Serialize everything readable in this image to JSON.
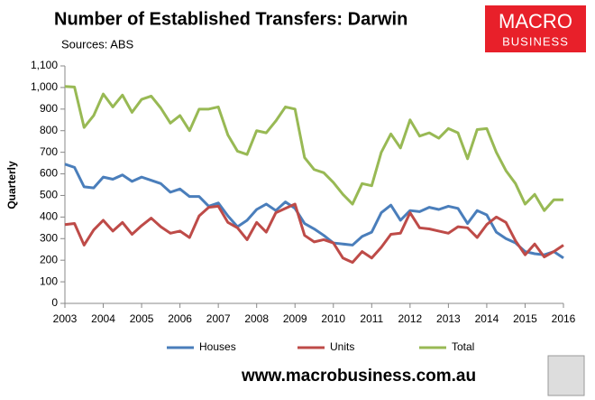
{
  "chart_data": {
    "type": "line",
    "title": "Number of Established Transfers: Darwin",
    "source": "Sources: ABS",
    "logo": [
      "MACRO",
      "BUSINESS"
    ],
    "website": "www.macrobusiness.com.au",
    "y_label": "Quarterly",
    "x": [
      2003,
      2003.25,
      2003.5,
      2003.75,
      2004,
      2004.25,
      2004.5,
      2004.75,
      2005,
      2005.25,
      2005.5,
      2005.75,
      2006,
      2006.25,
      2006.5,
      2006.75,
      2007,
      2007.25,
      2007.5,
      2007.75,
      2008,
      2008.25,
      2008.5,
      2008.75,
      2009,
      2009.25,
      2009.5,
      2009.75,
      2010,
      2010.25,
      2010.5,
      2010.75,
      2011,
      2011.25,
      2011.5,
      2011.75,
      2012,
      2012.25,
      2012.5,
      2012.75,
      2013,
      2013.25,
      2013.5,
      2013.75,
      2014,
      2014.25,
      2014.5,
      2014.75,
      2015,
      2015.25,
      2015.5,
      2015.75,
      2016
    ],
    "series": [
      {
        "name": "Houses",
        "color": "#4a7ebb",
        "values": [
          645,
          630,
          540,
          535,
          585,
          575,
          595,
          565,
          585,
          570,
          555,
          515,
          530,
          495,
          495,
          450,
          465,
          405,
          355,
          385,
          435,
          460,
          430,
          470,
          440,
          370,
          345,
          315,
          280,
          275,
          270,
          310,
          330,
          420,
          455,
          385,
          430,
          425,
          445,
          435,
          450,
          440,
          370,
          430,
          410,
          330,
          300,
          280,
          240,
          230,
          225,
          240,
          210
        ]
      },
      {
        "name": "Units",
        "color": "#be4b48",
        "values": [
          365,
          370,
          270,
          340,
          385,
          335,
          375,
          320,
          360,
          395,
          355,
          325,
          335,
          305,
          405,
          445,
          450,
          375,
          350,
          295,
          375,
          330,
          420,
          440,
          460,
          315,
          285,
          295,
          280,
          210,
          190,
          240,
          210,
          260,
          320,
          325,
          420,
          350,
          345,
          335,
          325,
          355,
          350,
          305,
          365,
          400,
          375,
          290,
          225,
          275,
          215,
          240,
          270
        ]
      },
      {
        "name": "Total",
        "color": "#98b954",
        "values": [
          1005,
          1002,
          815,
          870,
          970,
          910,
          965,
          885,
          945,
          960,
          905,
          835,
          870,
          800,
          900,
          900,
          910,
          780,
          705,
          690,
          800,
          790,
          845,
          910,
          900,
          675,
          620,
          605,
          560,
          505,
          460,
          555,
          545,
          700,
          785,
          720,
          850,
          775,
          790,
          765,
          810,
          790,
          670,
          805,
          810,
          700,
          615,
          555,
          460,
          505,
          430,
          480,
          480
        ]
      }
    ],
    "xlim": [
      2003,
      2016
    ],
    "xticks": [
      2003,
      2004,
      2005,
      2006,
      2007,
      2008,
      2009,
      2010,
      2011,
      2012,
      2013,
      2014,
      2015,
      2016
    ],
    "ylim": [
      0,
      1100
    ],
    "yticks": [
      0,
      100,
      200,
      300,
      400,
      500,
      600,
      700,
      800,
      900,
      {
        "value": 1000,
        "label": "1,000"
      },
      {
        "value": 1100,
        "label": "1,100"
      }
    ],
    "grid": false,
    "legend": "bottom"
  }
}
